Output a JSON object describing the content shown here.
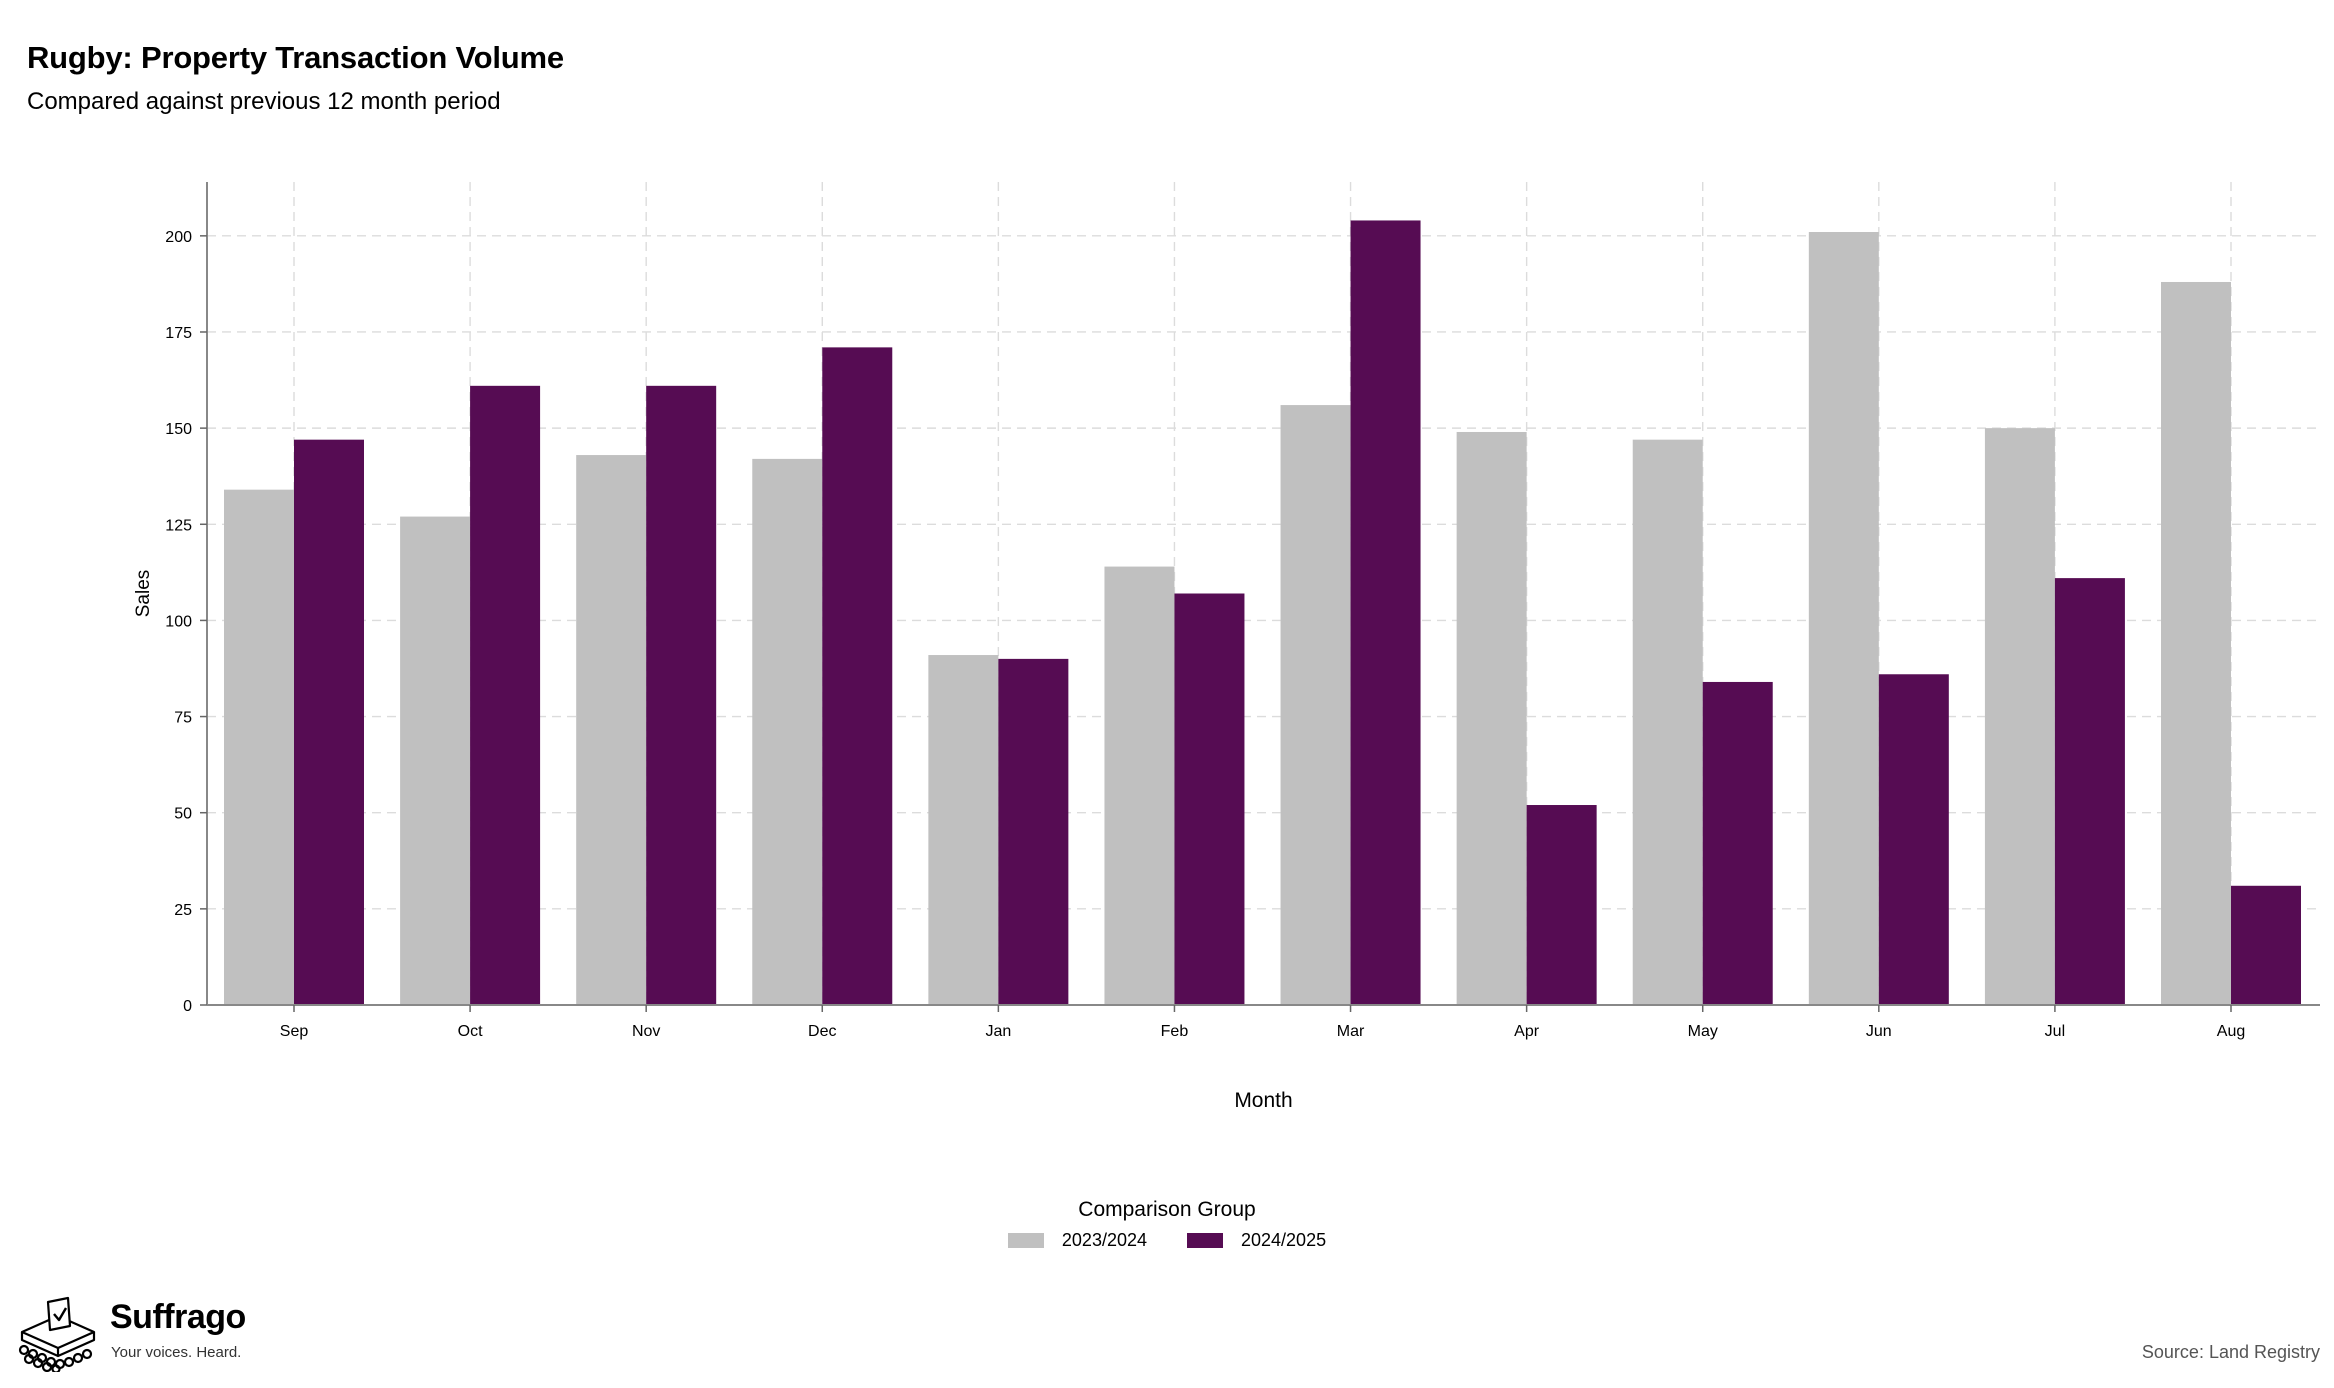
{
  "chart_data": {
    "type": "bar",
    "title": "Rugby: Property Transaction Volume",
    "subtitle": "Compared against previous 12 month period",
    "xlabel": "Month",
    "ylabel": "Sales",
    "categories": [
      "Sep",
      "Oct",
      "Nov",
      "Dec",
      "Jan",
      "Feb",
      "Mar",
      "Apr",
      "May",
      "Jun",
      "Jul",
      "Aug"
    ],
    "series": [
      {
        "name": "2023/2024",
        "color": "#c0c0c0",
        "values": [
          134,
          127,
          143,
          142,
          91,
          114,
          156,
          149,
          147,
          201,
          150,
          188
        ]
      },
      {
        "name": "2024/2025",
        "color": "#560c53",
        "values": [
          147,
          161,
          161,
          171,
          90,
          107,
          204,
          52,
          84,
          86,
          111,
          31
        ]
      }
    ],
    "ylim": [
      0,
      214
    ],
    "yticks": [
      0,
      25,
      50,
      75,
      100,
      125,
      150,
      175,
      200
    ],
    "grid": true,
    "legend_title": "Comparison Group",
    "legend_position": "bottom"
  },
  "branding": {
    "name": "Suffrago",
    "tagline": "Your voices. Heard.",
    "source": "Source: Land Registry"
  }
}
